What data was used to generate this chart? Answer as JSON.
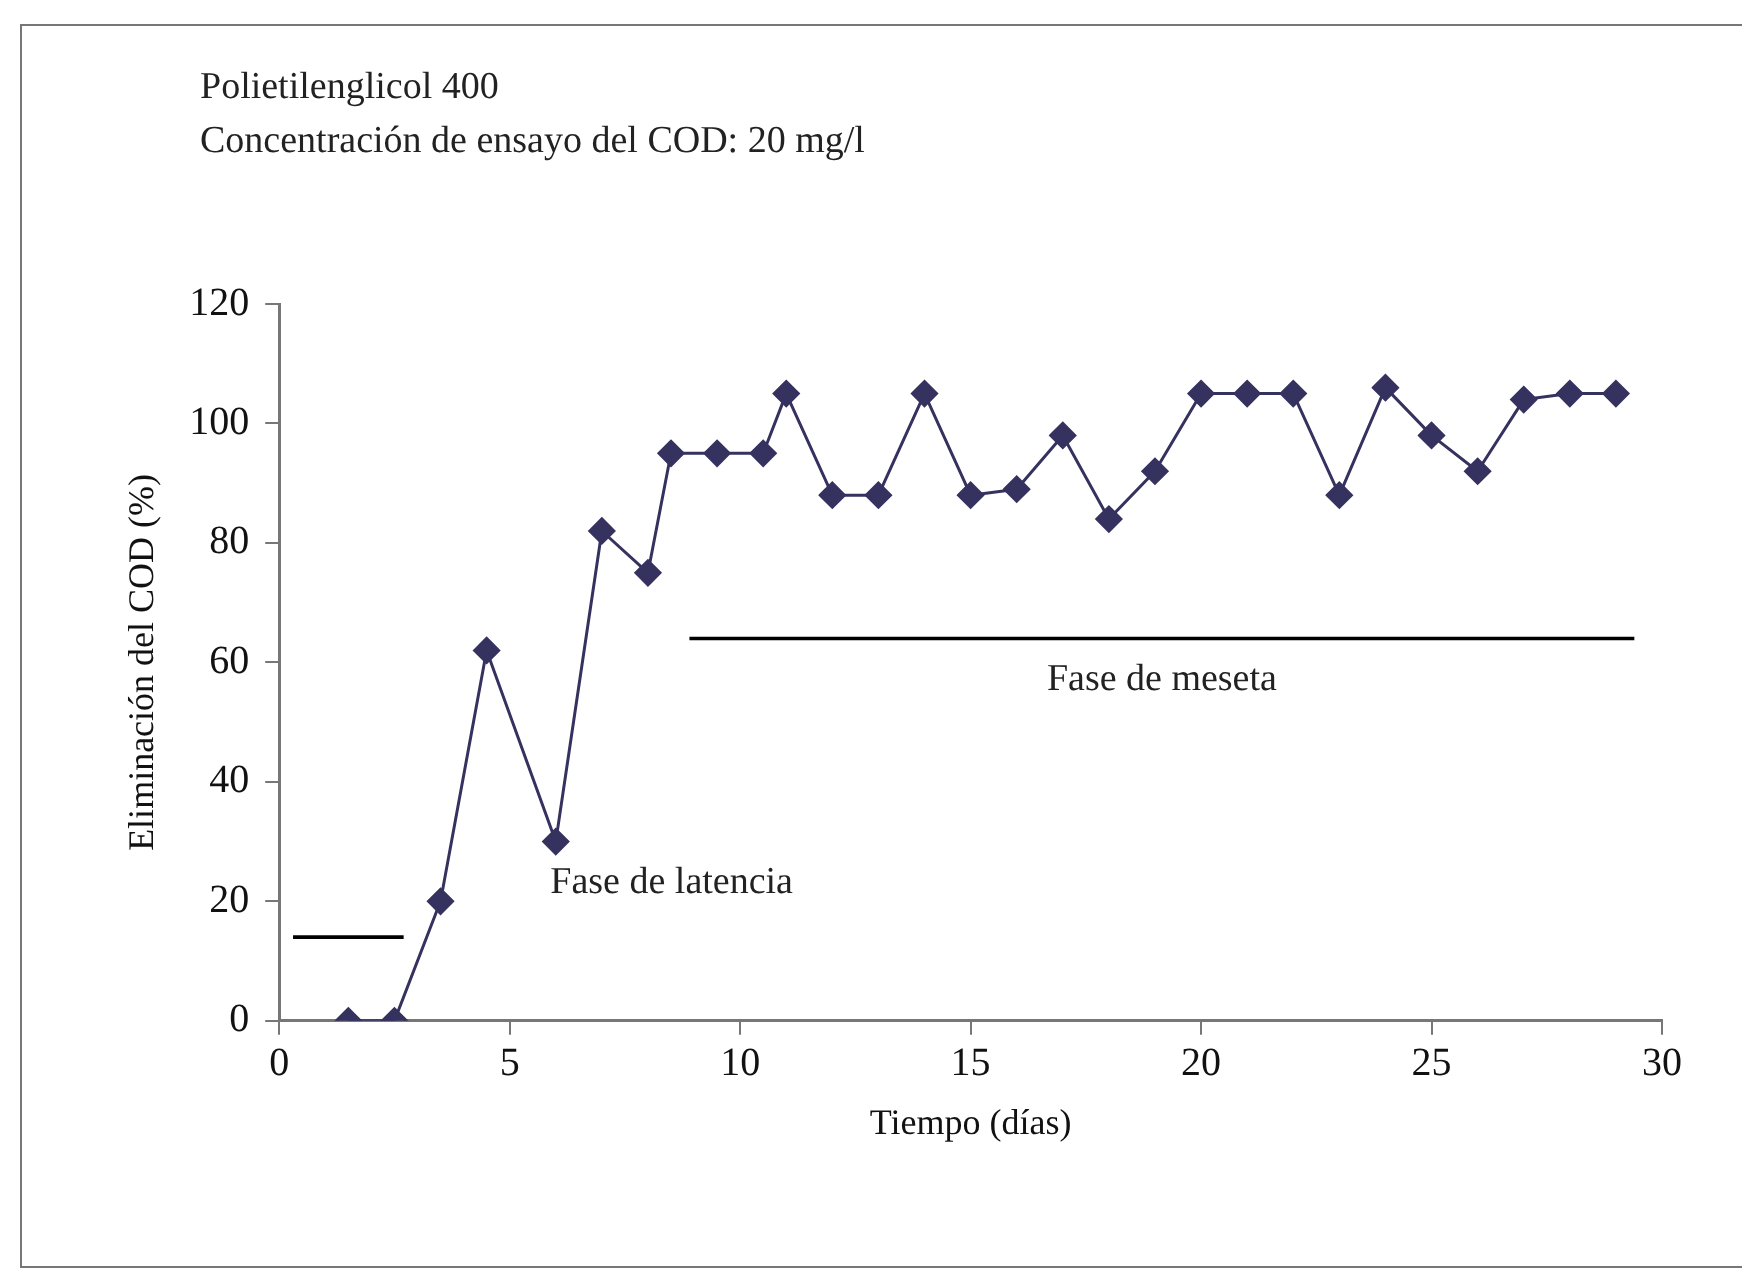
{
  "chart_data": {
    "type": "line",
    "title": "Polietilenglicol 400",
    "subtitle": "Concentración de ensayo del COD: 20 mg/l",
    "xlabel": "Tiempo (días)",
    "ylabel": "Eliminación del COD (%)",
    "series": [
      {
        "type": "line",
        "color": "#35325f",
        "marker": "diamond",
        "x": [
          1.5,
          2.5,
          3.5,
          4.5,
          6,
          7,
          8,
          8.5,
          9.5,
          10.5,
          11,
          12,
          13,
          14,
          15,
          16,
          17,
          18,
          19,
          20,
          21,
          22,
          23,
          24,
          25,
          26,
          27,
          28,
          29
        ],
        "values": [
          0,
          0,
          20,
          62,
          30,
          82,
          75,
          95,
          95,
          95,
          105,
          88,
          88,
          105,
          88,
          89,
          98,
          84,
          92,
          105,
          105,
          105,
          88,
          106,
          98,
          92,
          104,
          105,
          105
        ]
      },
      {
        "type": "line",
        "color": "#000000",
        "marker": "none",
        "x": [
          0.3,
          2.7
        ],
        "values": [
          14,
          14
        ]
      },
      {
        "type": "line",
        "color": "#000000",
        "marker": "none",
        "x": [
          8.9,
          29.4
        ],
        "values": [
          64,
          64
        ]
      }
    ],
    "annotations": [
      "Fase de latencia",
      "Fase de meseta"
    ],
    "xlim": [
      0,
      30
    ],
    "xticks": [
      0,
      5,
      10,
      15,
      20,
      25,
      30
    ],
    "ylim": [
      0,
      120
    ],
    "yticks": [
      0,
      20,
      40,
      60,
      80,
      100,
      120
    ],
    "grid": false,
    "legend": false
  }
}
